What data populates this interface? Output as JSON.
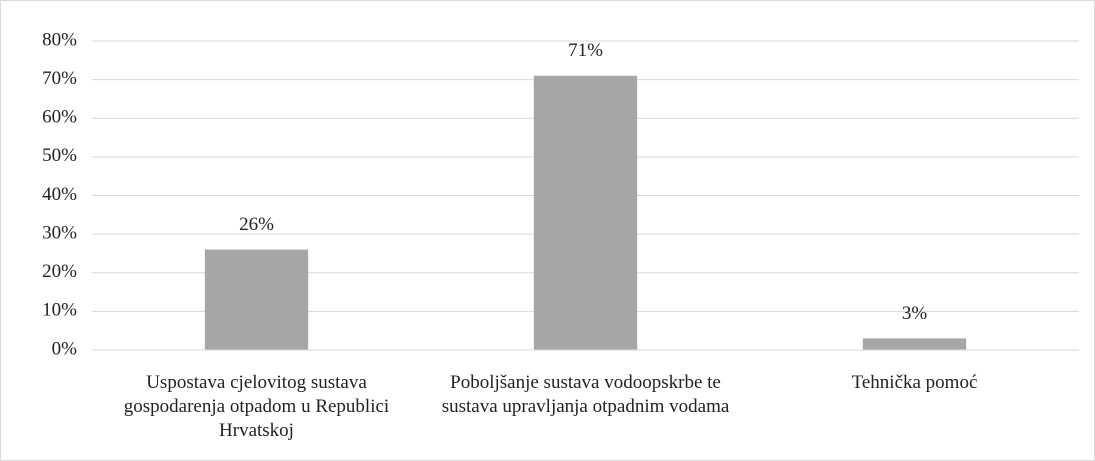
{
  "chart_data": {
    "type": "bar",
    "categories": [
      "Uspostava cjelovitog sustava gospodarenja otpadom u Republici Hrvatskoj",
      "Poboljšanje sustava vodoopskrbe te sustava upravljanja otpadnim vodama",
      "Tehnička pomoć"
    ],
    "values": [
      26,
      71,
      3
    ],
    "value_labels": [
      "26%",
      "71%",
      "3%"
    ],
    "color": "#a8a5a5",
    "ylim": [
      0,
      80
    ],
    "yticks": [
      {
        "value": 0,
        "label": "0%"
      },
      {
        "value": 10,
        "label": "10%"
      },
      {
        "value": 20,
        "label": "20%"
      },
      {
        "value": 30,
        "label": "30%"
      },
      {
        "value": 40,
        "label": "40%"
      },
      {
        "value": 50,
        "label": "50%"
      },
      {
        "value": 60,
        "label": "60%"
      },
      {
        "value": 70,
        "label": "70%"
      },
      {
        "value": 80,
        "label": "80%"
      }
    ],
    "grid": true
  }
}
